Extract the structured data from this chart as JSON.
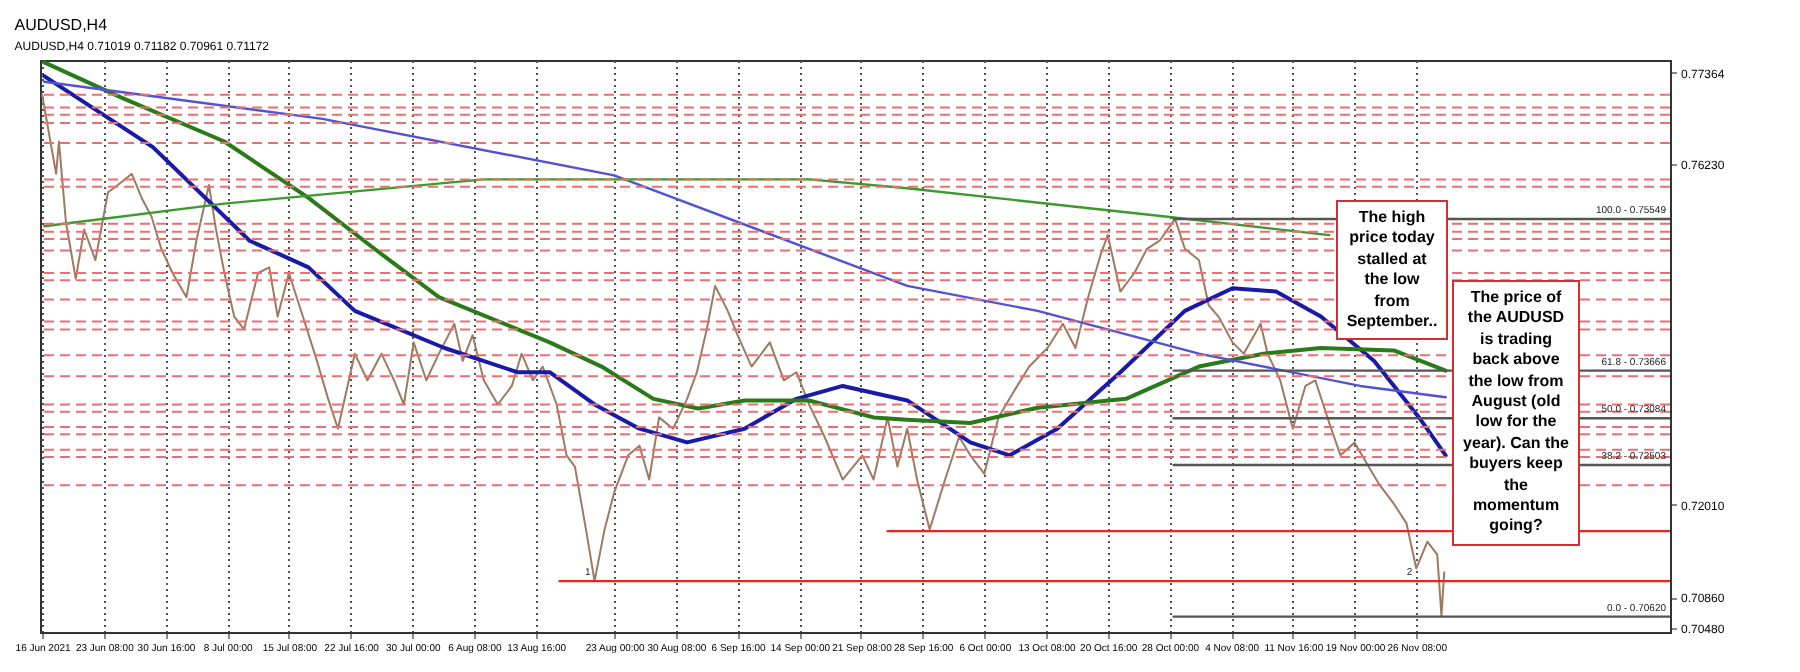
{
  "chart_data": {
    "type": "line",
    "title": "AUDUSD,H4",
    "subtitle": "AUDUSD,H4 0.71019 0.71182 0.70961 0.71172",
    "xlim": [
      "2021-06-15T18:00",
      "2021-12-26T12:00"
    ],
    "xticks": [
      {
        "value": "2021-06-16",
        "label": "16 Jun 2021"
      },
      {
        "value": "2021-06-23T08:00",
        "label": "23 Jun 08:00"
      },
      {
        "value": "2021-06-30T16:00",
        "label": "30 Jun 16:00"
      },
      {
        "value": "2021-07-08",
        "label": "8 Jul 00:00"
      },
      {
        "value": "2021-07-15T08:00",
        "label": "15 Jul 08:00"
      },
      {
        "value": "2021-07-22T16:00",
        "label": "22 Jul 16:00"
      },
      {
        "value": "2021-07-30",
        "label": "30 Jul 00:00"
      },
      {
        "value": "2021-08-06T08:00",
        "label": "6 Aug 08:00"
      },
      {
        "value": "2021-08-13T16:00",
        "label": "13 Aug 16:00"
      },
      {
        "value": "2021-08-23",
        "label": "23 Aug 00:00"
      },
      {
        "value": "2021-08-30T08:00",
        "label": "30 Aug 08:00"
      },
      {
        "value": "2021-09-06T16:00",
        "label": "6 Sep 16:00"
      },
      {
        "value": "2021-09-14",
        "label": "14 Sep 00:00"
      },
      {
        "value": "2021-09-21T08:00",
        "label": "21 Sep 08:00"
      },
      {
        "value": "2021-09-28T16:00",
        "label": "28 Sep 16:00"
      },
      {
        "value": "2021-10-06",
        "label": "6 Oct 00:00"
      },
      {
        "value": "2021-10-13T08:00",
        "label": "13 Oct 08:00"
      },
      {
        "value": "2021-10-20T16:00",
        "label": "20 Oct 16:00"
      },
      {
        "value": "2021-10-28",
        "label": "28 Oct 00:00"
      },
      {
        "value": "2021-11-04T08:00",
        "label": "4 Nov 08:00"
      },
      {
        "value": "2021-11-11T16:00",
        "label": "11 Nov 16:00"
      },
      {
        "value": "2021-11-19",
        "label": "19 Nov 00:00"
      },
      {
        "value": "2021-11-26T08:00",
        "label": "26 Nov 08:00"
      }
    ],
    "ylim": [
      0.7043,
      0.7752
    ],
    "yticks": [
      {
        "value": 0.7048,
        "label": "0.70480"
      },
      {
        "value": 0.7086,
        "label": "0.70860"
      },
      {
        "value": 0.7201,
        "label": "0.72010"
      },
      {
        "value": 0.7623,
        "label": "0.76230"
      },
      {
        "value": 0.77364,
        "label": "0.77364"
      }
    ],
    "grid": "x",
    "marker": "none",
    "line_style": "solid",
    "series": [
      {
        "color": "#a07a60",
        "x": [
          "2021-06-16T00:00",
          "2021-06-17T16:00",
          "2021-06-18T00:00",
          "2021-06-18T20:00",
          "2021-06-20T00:00",
          "2021-06-21T00:00",
          "2021-06-22T08:00",
          "2021-06-23T20:00",
          "2021-06-25T00:00",
          "2021-06-26T16:00",
          "2021-06-27T20:00",
          "2021-06-29T00:00",
          "2021-06-30T04:00",
          "2021-07-01T12:00",
          "2021-07-03T04:00",
          "2021-07-04T08:00",
          "2021-07-05T20:00",
          "2021-07-06T16:00",
          "2021-07-07T16:00",
          "2021-07-08T20:00",
          "2021-07-10T00:00",
          "2021-07-11T16:00",
          "2021-07-13T00:00",
          "2021-07-14T00:00",
          "2021-07-15T08:00",
          "2021-07-17T00:00",
          "2021-07-18T16:00",
          "2021-07-20T00:00",
          "2021-07-21T04:00",
          "2021-07-23T04:00",
          "2021-07-24T16:00",
          "2021-07-26T08:00",
          "2021-07-27T20:00",
          "2021-07-29T00:00",
          "2021-07-30T04:00",
          "2021-07-31T16:00",
          "2021-08-02T04:00",
          "2021-08-04T00:00",
          "2021-08-05T00:00",
          "2021-08-06T04:00",
          "2021-08-07T12:00",
          "2021-08-09T04:00",
          "2021-08-10T20:00",
          "2021-08-12T00:00",
          "2021-08-13T08:00",
          "2021-08-14T12:00",
          "2021-08-16T04:00",
          "2021-08-17T08:00",
          "2021-08-18T08:00",
          "2021-08-19T16:00",
          "2021-08-20T16:00",
          "2021-08-21T20:00",
          "2021-08-23T00:00",
          "2021-08-24T16:00",
          "2021-08-26T00:00",
          "2021-08-27T04:00",
          "2021-08-28T08:00",
          "2021-08-30T00:00",
          "2021-08-31T16:00",
          "2021-09-01T20:00",
          "2021-09-03T00:00",
          "2021-09-04T00:00",
          "2021-09-05T12:00",
          "2021-09-06T16:00",
          "2021-09-08T08:00",
          "2021-09-10T12:00",
          "2021-09-12T04:00",
          "2021-09-13T16:00",
          "2021-09-15T04:00",
          "2021-09-17T00:00",
          "2021-09-19T04:00",
          "2021-09-21T12:00",
          "2021-09-22T20:00",
          "2021-09-24T12:00",
          "2021-09-25T16:00",
          "2021-09-26T20:00",
          "2021-09-28T00:00",
          "2021-09-29T12:00",
          "2021-10-01T08:00",
          "2021-10-03T00:00",
          "2021-10-04T08:00",
          "2021-10-06T00:00",
          "2021-10-07T16:00",
          "2021-10-09T12:00",
          "2021-10-11T08:00",
          "2021-10-13T12:00",
          "2021-10-15T08:00",
          "2021-10-16T20:00",
          "2021-10-18T08:00",
          "2021-10-19T20:00",
          "2021-10-20T16:00",
          "2021-10-22T04:00",
          "2021-10-23T20:00",
          "2021-10-25T08:00",
          "2021-10-26T20:00",
          "2021-10-28T16:00",
          "2021-10-29T20:00",
          "2021-10-31T12:00",
          "2021-11-01T16:00",
          "2021-11-02T20:00",
          "2021-11-04T12:00",
          "2021-11-05T20:00",
          "2021-11-07T20:00",
          "2021-11-08T16:00",
          "2021-11-10T04:00",
          "2021-11-11T16:00",
          "2021-11-13T04:00",
          "2021-11-14T08:00",
          "2021-11-16T00:00",
          "2021-11-17T08:00",
          "2021-11-19T00:00",
          "2021-11-20T16:00",
          "2021-11-22T00:00",
          "2021-11-23T16:00",
          "2021-11-25T04:00",
          "2021-11-26T08:00",
          "2021-11-27T16:00",
          "2021-11-28T20:00",
          "2021-11-29T08:00",
          "2021-11-29T16:00"
        ],
        "values": [
          0.7709,
          0.7611,
          0.7651,
          0.7551,
          0.7481,
          0.7542,
          0.7504,
          0.7588,
          0.7597,
          0.7611,
          0.7581,
          0.7558,
          0.7518,
          0.7488,
          0.7458,
          0.7528,
          0.7597,
          0.7542,
          0.7488,
          0.7434,
          0.7418,
          0.7488,
          0.7495,
          0.7434,
          0.7488,
          0.7434,
          0.7379,
          0.7332,
          0.7295,
          0.7388,
          0.7355,
          0.7388,
          0.7355,
          0.7325,
          0.7402,
          0.7355,
          0.7388,
          0.7425,
          0.7379,
          0.7411,
          0.7355,
          0.7325,
          0.7348,
          0.7388,
          0.7355,
          0.7372,
          0.7325,
          0.7262,
          0.7248,
          0.7169,
          0.7106,
          0.7169,
          0.7216,
          0.7262,
          0.7274,
          0.7232,
          0.7309,
          0.7295,
          0.7332,
          0.7365,
          0.7418,
          0.7472,
          0.7441,
          0.7411,
          0.7372,
          0.7402,
          0.7355,
          0.7365,
          0.7325,
          0.7285,
          0.7232,
          0.7262,
          0.7232,
          0.7309,
          0.7248,
          0.7295,
          0.7232,
          0.717,
          0.7232,
          0.7285,
          0.7262,
          0.7239,
          0.7309,
          0.7341,
          0.7372,
          0.7395,
          0.7425,
          0.7395,
          0.7458,
          0.7511,
          0.7535,
          0.7465,
          0.7488,
          0.7518,
          0.7528,
          0.7555,
          0.7518,
          0.7504,
          0.7448,
          0.7434,
          0.7402,
          0.7388,
          0.7425,
          0.7388,
          0.7355,
          0.7295,
          0.7348,
          0.7355,
          0.7302,
          0.7262,
          0.7278,
          0.7248,
          0.7225,
          0.7202,
          0.7178,
          0.7122,
          0.7155,
          0.7139,
          0.7063,
          0.7117
        ]
      },
      {
        "color": "#1a1aa8",
        "x": [
          "2021-06-16T06:00",
          "2021-06-29T04:00",
          "2021-07-10T16:00",
          "2021-07-17T16:00",
          "2021-07-23T04:00",
          "2021-08-02T20:00",
          "2021-08-11T12:00",
          "2021-08-15T08:00",
          "2021-08-20T16:00",
          "2021-08-26T00:00",
          "2021-08-31T16:00",
          "2021-09-07T12:00",
          "2021-09-13T16:00",
          "2021-09-19T04:00",
          "2021-09-26T20:00",
          "2021-10-04T08:00",
          "2021-10-09T00:00",
          "2021-10-14T16:00",
          "2021-10-22T04:00",
          "2021-10-29T20:00",
          "2021-11-04T12:00",
          "2021-11-09T16:00",
          "2021-11-15T00:00",
          "2021-11-21T08:00",
          "2021-11-26T16:00",
          "2021-11-29T20:00"
        ],
        "values": [
          0.7732,
          0.7644,
          0.7528,
          0.7495,
          0.7441,
          0.7395,
          0.7365,
          0.7365,
          0.7325,
          0.7295,
          0.7278,
          0.7295,
          0.7332,
          0.7348,
          0.733,
          0.7278,
          0.7262,
          0.7295,
          0.7365,
          0.7441,
          0.7469,
          0.7465,
          0.7434,
          0.7379,
          0.7309,
          0.7262
        ]
      },
      {
        "color": "#2a7a1a",
        "x": [
          "2021-06-16T06:00",
          "2021-06-25T12:00",
          "2021-07-07T16:00",
          "2021-07-17T16:00",
          "2021-07-25T12:00",
          "2021-08-02T04:00",
          "2021-08-15T08:00",
          "2021-08-21T12:00",
          "2021-08-27T16:00",
          "2021-09-02T00:00",
          "2021-09-07T12:00",
          "2021-09-15T04:00",
          "2021-09-22T20:00",
          "2021-09-26T20:00",
          "2021-10-04T08:00",
          "2021-10-12T08:00",
          "2021-10-22T20:00",
          "2021-10-31T12:00",
          "2021-11-08T04:00",
          "2021-11-15T00:00",
          "2021-11-23T16:00",
          "2021-11-29T20:00"
        ],
        "values": [
          0.7749,
          0.7705,
          0.7651,
          0.7581,
          0.7518,
          0.7458,
          0.7402,
          0.7372,
          0.7332,
          0.732,
          0.733,
          0.733,
          0.7309,
          0.7306,
          0.7302,
          0.7321,
          0.7332,
          0.7372,
          0.7388,
          0.7395,
          0.7392,
          0.7367
        ]
      },
      {
        "color": "#5252d6",
        "x": [
          "2021-06-16T06:00",
          "2021-07-19T08:00",
          "2021-08-23T00:00",
          "2021-09-26T20:00",
          "2021-10-12T08:00",
          "2021-10-31T12:00",
          "2021-11-19T16:00",
          "2021-11-29T20:00"
        ],
        "values": [
          0.7725,
          0.7679,
          0.7609,
          0.7472,
          0.7441,
          0.7388,
          0.7348,
          0.7334
        ]
      },
      {
        "color": "#3a9a2a",
        "x": [
          "2021-06-16T06:00",
          "2021-07-07T16:00",
          "2021-08-07T12:00",
          "2021-09-15T04:00",
          "2021-09-26T20:00",
          "2021-10-27T12:00",
          "2021-11-16T00:00"
        ],
        "values": [
          0.7546,
          0.7574,
          0.7604,
          0.7604,
          0.7593,
          0.7558,
          0.7535
        ]
      },
      {
        "color": "#ee2222",
        "x": [
          "2021-08-16T12:00",
          "2021-12-26T12:00"
        ],
        "values": [
          0.7106,
          0.7106
        ]
      },
      {
        "color": "#ee2222",
        "x": [
          "2021-09-24T12:00",
          "2021-12-26T12:00"
        ],
        "values": [
          0.7168,
          0.7168
        ]
      },
      {
        "color": "#555555",
        "x": [
          "2021-10-28T12:00",
          "2021-12-26T12:00"
        ],
        "values": [
          0.7555,
          0.7555
        ]
      },
      {
        "color": "#555555",
        "x": [
          "2021-10-28T12:00",
          "2021-12-26T12:00"
        ],
        "values": [
          0.7367,
          0.7367
        ]
      },
      {
        "color": "#555555",
        "x": [
          "2021-10-28T12:00",
          "2021-12-26T12:00"
        ],
        "values": [
          0.7308,
          0.7308
        ]
      },
      {
        "color": "#555555",
        "x": [
          "2021-10-28T12:00",
          "2021-12-26T12:00"
        ],
        "values": [
          0.725,
          0.725
        ]
      },
      {
        "color": "#555555",
        "x": [
          "2021-10-28T12:00",
          "2021-12-26T12:00"
        ],
        "values": [
          0.7062,
          0.7062
        ]
      }
    ],
    "ref_lines": [
      {
        "axis": "y",
        "value": 0.7709,
        "color": "#e87070",
        "line_style": "dashed"
      },
      {
        "axis": "y",
        "value": 0.7693,
        "color": "#e87070",
        "line_style": "dashed"
      },
      {
        "axis": "y",
        "value": 0.7684,
        "color": "#e87070",
        "line_style": "dashed"
      },
      {
        "axis": "y",
        "value": 0.7674,
        "color": "#e87070",
        "line_style": "dashed"
      },
      {
        "axis": "y",
        "value": 0.7649,
        "color": "#e87070",
        "line_style": "dashed"
      },
      {
        "axis": "y",
        "value": 0.7604,
        "color": "#e87070",
        "line_style": "dashed"
      },
      {
        "axis": "y",
        "value": 0.7595,
        "color": "#e87070",
        "line_style": "dashed"
      },
      {
        "axis": "y",
        "value": 0.7549,
        "color": "#e87070",
        "line_style": "dashed"
      },
      {
        "axis": "y",
        "value": 0.7539,
        "color": "#e87070",
        "line_style": "dashed"
      },
      {
        "axis": "y",
        "value": 0.753,
        "color": "#e87070",
        "line_style": "dashed"
      },
      {
        "axis": "y",
        "value": 0.7516,
        "color": "#e87070",
        "line_style": "dashed"
      },
      {
        "axis": "y",
        "value": 0.7488,
        "color": "#e87070",
        "line_style": "dashed"
      },
      {
        "axis": "y",
        "value": 0.7479,
        "color": "#e87070",
        "line_style": "dashed"
      },
      {
        "axis": "y",
        "value": 0.7455,
        "color": "#e87070",
        "line_style": "dashed"
      },
      {
        "axis": "y",
        "value": 0.7428,
        "color": "#e87070",
        "line_style": "dashed"
      },
      {
        "axis": "y",
        "value": 0.7418,
        "color": "#e87070",
        "line_style": "dashed"
      },
      {
        "axis": "y",
        "value": 0.7386,
        "color": "#e87070",
        "line_style": "dashed"
      },
      {
        "axis": "y",
        "value": 0.736,
        "color": "#e87070",
        "line_style": "dashed"
      },
      {
        "axis": "y",
        "value": 0.7325,
        "color": "#e87070",
        "line_style": "dashed"
      },
      {
        "axis": "y",
        "value": 0.7316,
        "color": "#e87070",
        "line_style": "dashed"
      },
      {
        "axis": "y",
        "value": 0.7297,
        "color": "#e87070",
        "line_style": "dashed"
      },
      {
        "axis": "y",
        "value": 0.7288,
        "color": "#e87070",
        "line_style": "dashed"
      },
      {
        "axis": "y",
        "value": 0.7269,
        "color": "#e87070",
        "line_style": "dashed"
      },
      {
        "axis": "y",
        "value": 0.726,
        "color": "#e87070",
        "line_style": "dashed"
      },
      {
        "axis": "y",
        "value": 0.7225,
        "color": "#e87070",
        "line_style": "dashed"
      }
    ],
    "annotations": [
      "The high price today stalled at the low from September..",
      "The price of the AUDUSD is trading back above the low from August (old low for the year).  Can the buyers keep the momentum going?",
      {
        "text": "1",
        "x": "2021-08-20T16:00",
        "y": 0.7106
      },
      {
        "text": "2",
        "x": "2021-11-26T08:00",
        "y": 0.7106
      },
      {
        "text": "100.0 - 0.75549",
        "x": "2021-12-26T12:00",
        "y": 0.7555
      },
      {
        "text": "61.8 - 0.73666",
        "x": "2021-12-26T12:00",
        "y": 0.7367
      },
      {
        "text": "50.0 - 0.73084",
        "x": "2021-12-26T12:00",
        "y": 0.7308
      },
      {
        "text": "38.2 - 0.72503",
        "x": "2021-12-26T12:00",
        "y": 0.725
      },
      {
        "text": "0.0 - 0.70620",
        "x": "2021-12-26T12:00",
        "y": 0.7062
      }
    ]
  }
}
